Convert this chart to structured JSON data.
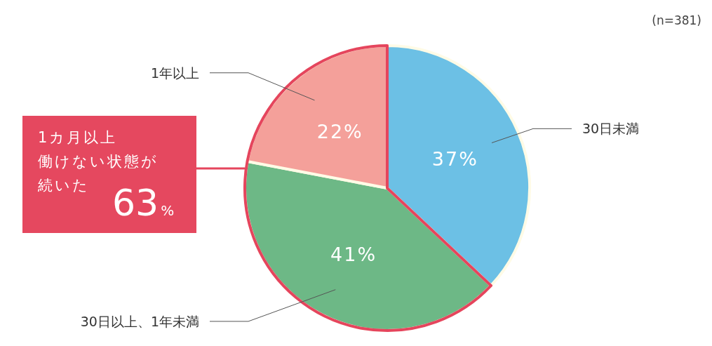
{
  "chart_data": {
    "type": "pie",
    "categories": [
      "30日未満",
      "30日以上、1年未満",
      "1年以上"
    ],
    "values": [
      37,
      41,
      22
    ],
    "colors": [
      "#6cc0e5",
      "#6db886",
      "#f4a09a"
    ],
    "value_labels": [
      "37%",
      "41%",
      "22%"
    ],
    "annotations": [
      "(n=381)",
      "1カ月以上",
      "働けない状態が",
      "続いた",
      "63%"
    ]
  }
}
